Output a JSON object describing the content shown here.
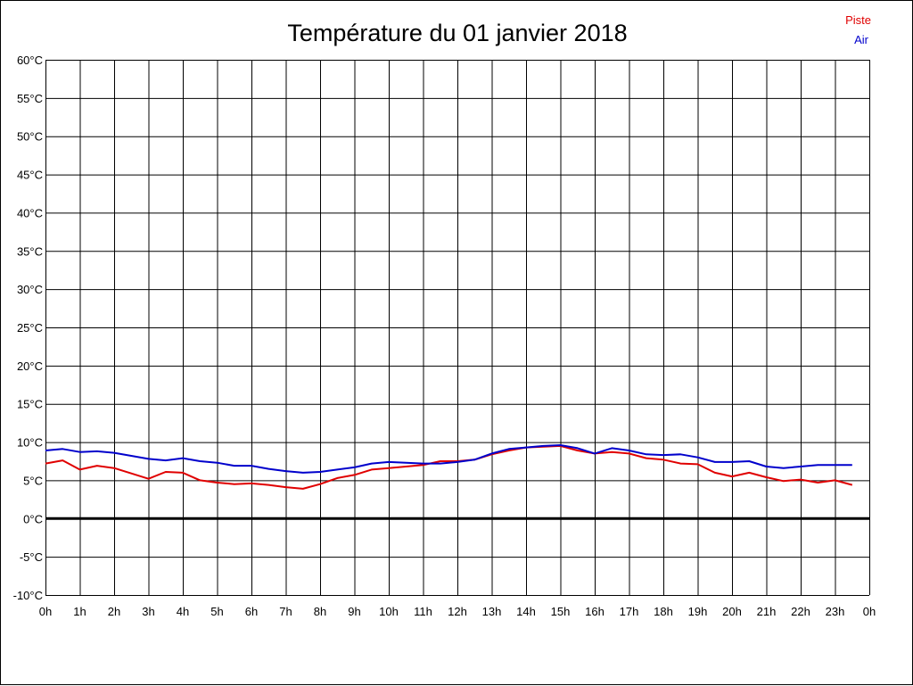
{
  "chart_data": {
    "type": "line",
    "title": "Température du 01 janvier 2018",
    "xlabel": "",
    "ylabel": "",
    "x_range": [
      0,
      24
    ],
    "ylim": [
      -10,
      60
    ],
    "y_step": 5,
    "y_unit": "°C",
    "x_tick_labels": [
      "0h",
      "1h",
      "2h",
      "3h",
      "4h",
      "5h",
      "6h",
      "7h",
      "8h",
      "9h",
      "10h",
      "11h",
      "12h",
      "13h",
      "14h",
      "15h",
      "16h",
      "17h",
      "18h",
      "19h",
      "20h",
      "21h",
      "22h",
      "23h",
      "0h"
    ],
    "y_tick_labels": [
      "60°C",
      "55°C",
      "50°C",
      "45°C",
      "40°C",
      "35°C",
      "30°C",
      "25°C",
      "20°C",
      "15°C",
      "10°C",
      "5°C",
      "0°C",
      "-5°C",
      "-10°C"
    ],
    "grid": true,
    "legend_position": "top-right",
    "x": [
      0,
      0.5,
      1,
      1.5,
      2,
      2.5,
      3,
      3.5,
      4,
      4.5,
      5,
      5.5,
      6,
      6.5,
      7,
      7.5,
      8,
      8.5,
      9,
      9.5,
      10,
      10.5,
      11,
      11.5,
      12,
      12.5,
      13,
      13.5,
      14,
      14.5,
      15,
      15.5,
      16,
      16.5,
      17,
      17.5,
      18,
      18.5,
      19,
      19.5,
      20,
      20.5,
      21,
      21.5,
      22,
      22.5,
      23,
      23.5
    ],
    "series": [
      {
        "name": "Piste",
        "color": "#e00000",
        "values": [
          7.2,
          7.6,
          6.4,
          6.9,
          6.6,
          5.9,
          5.2,
          6.1,
          6.0,
          5.0,
          4.7,
          4.5,
          4.6,
          4.4,
          4.1,
          3.9,
          4.5,
          5.3,
          5.7,
          6.4,
          6.6,
          6.8,
          7.0,
          7.5,
          7.5,
          7.7,
          8.4,
          8.9,
          9.3,
          9.4,
          9.5,
          8.9,
          8.5,
          8.7,
          8.5,
          7.9,
          7.7,
          7.2,
          7.1,
          6.0,
          5.5,
          6.0,
          5.4,
          4.9,
          5.1,
          4.7,
          5.0,
          4.4
        ]
      },
      {
        "name": "Air",
        "color": "#0000cc",
        "values": [
          8.9,
          9.1,
          8.7,
          8.8,
          8.6,
          8.2,
          7.8,
          7.6,
          7.9,
          7.5,
          7.3,
          6.9,
          6.9,
          6.5,
          6.2,
          6.0,
          6.1,
          6.4,
          6.7,
          7.2,
          7.4,
          7.3,
          7.2,
          7.2,
          7.4,
          7.7,
          8.5,
          9.1,
          9.3,
          9.5,
          9.6,
          9.2,
          8.5,
          9.2,
          8.9,
          8.4,
          8.3,
          8.4,
          8.0,
          7.4,
          7.4,
          7.5,
          6.8,
          6.6,
          6.8,
          7.0,
          7.0,
          7.0
        ]
      }
    ]
  }
}
